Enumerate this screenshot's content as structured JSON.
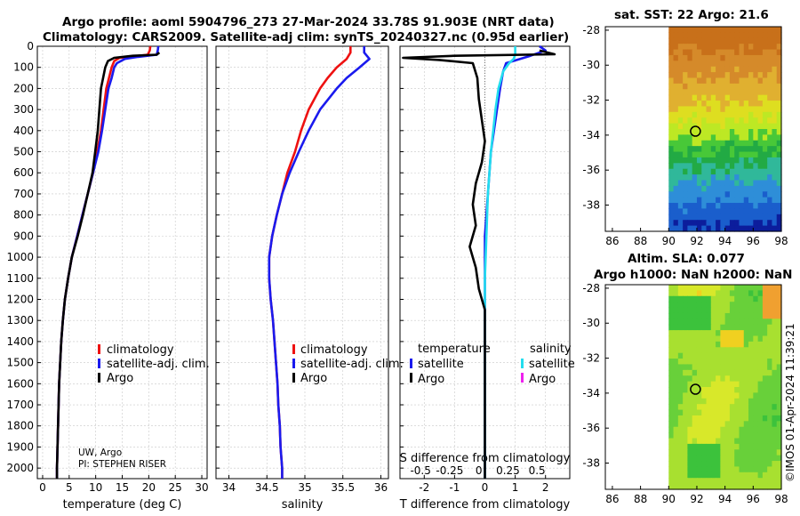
{
  "header": {
    "title_line1": "Argo profile: aoml 5904796_273 27-Mar-2024 33.78S 91.903E (NRT data)",
    "title_line2": "Climatology: CARS2009. Satellite-adj clim: synTS_20240327.nc (0.95d earlier)"
  },
  "credits": {
    "uw": "UW, Argo",
    "pi": "PI: STEPHEN RISER",
    "imos": "©IMOS 01-Apr-2024 11:39:21"
  },
  "colors": {
    "climatology": "#ee1111",
    "satellite": "#1a1aee",
    "argo": "#000000",
    "sat_salinity": "#22ddee",
    "argo_salinity": "#ee22ee"
  },
  "chart_data": [
    {
      "id": "temperature",
      "type": "line",
      "xlabel": "temperature (deg C)",
      "xlim": [
        -1,
        31
      ],
      "xticks": [
        0,
        5,
        10,
        15,
        20,
        25,
        30
      ],
      "ylim": [
        2050,
        0
      ],
      "yticks": [
        0,
        100,
        200,
        300,
        400,
        500,
        600,
        700,
        800,
        900,
        1000,
        1100,
        1200,
        1300,
        1400,
        1500,
        1600,
        1700,
        1800,
        1900,
        2000
      ],
      "legend": [
        "climatology",
        "satellite-adj. clim.",
        "Argo"
      ],
      "series": [
        {
          "name": "climatology",
          "color": "#ee1111",
          "points": [
            [
              20.3,
              0
            ],
            [
              20.2,
              20
            ],
            [
              19.8,
              40
            ],
            [
              17,
              48
            ],
            [
              14.5,
              55
            ],
            [
              13.5,
              70
            ],
            [
              13,
              100
            ],
            [
              12.5,
              150
            ],
            [
              12,
              200
            ],
            [
              11.5,
              300
            ],
            [
              11,
              400
            ],
            [
              10.3,
              500
            ],
            [
              9.5,
              600
            ],
            [
              8.5,
              700
            ],
            [
              7.5,
              800
            ],
            [
              6.5,
              900
            ],
            [
              5.5,
              1000
            ],
            [
              4.8,
              1100
            ],
            [
              4.2,
              1200
            ],
            [
              3.8,
              1300
            ],
            [
              3.5,
              1400
            ],
            [
              3.3,
              1500
            ],
            [
              3.1,
              1600
            ],
            [
              3,
              1700
            ],
            [
              2.9,
              1800
            ],
            [
              2.8,
              1900
            ],
            [
              2.7,
              2000
            ],
            [
              2.7,
              2050
            ]
          ]
        },
        {
          "name": "satellite-adj. clim.",
          "color": "#1a1aee",
          "points": [
            [
              21.8,
              0
            ],
            [
              21.7,
              20
            ],
            [
              21.5,
              40
            ],
            [
              18,
              50
            ],
            [
              15.5,
              60
            ],
            [
              14,
              80
            ],
            [
              13.5,
              100
            ],
            [
              13,
              150
            ],
            [
              12.4,
              200
            ],
            [
              11.8,
              300
            ],
            [
              11.2,
              400
            ],
            [
              10.5,
              500
            ],
            [
              9.5,
              600
            ],
            [
              8.5,
              700
            ],
            [
              7.5,
              800
            ],
            [
              6.5,
              900
            ],
            [
              5.5,
              1000
            ],
            [
              4.8,
              1100
            ],
            [
              4.2,
              1200
            ],
            [
              3.8,
              1300
            ],
            [
              3.5,
              1400
            ],
            [
              3.3,
              1500
            ],
            [
              3.1,
              1600
            ],
            [
              3,
              1700
            ],
            [
              2.9,
              1800
            ],
            [
              2.8,
              1900
            ],
            [
              2.7,
              2000
            ],
            [
              2.7,
              2050
            ]
          ]
        },
        {
          "name": "Argo",
          "color": "#000000",
          "points": [
            [
              22,
              30
            ],
            [
              21.5,
              40
            ],
            [
              17,
              45
            ],
            [
              13.5,
              55
            ],
            [
              12.3,
              70
            ],
            [
              11.8,
              100
            ],
            [
              11.4,
              150
            ],
            [
              11,
              200
            ],
            [
              10.7,
              300
            ],
            [
              10.4,
              400
            ],
            [
              9.9,
              500
            ],
            [
              9.4,
              600
            ],
            [
              8.5,
              700
            ],
            [
              7.6,
              800
            ],
            [
              6.6,
              900
            ],
            [
              5.5,
              1000
            ],
            [
              4.8,
              1100
            ],
            [
              4.2,
              1200
            ],
            [
              3.8,
              1300
            ],
            [
              3.5,
              1400
            ],
            [
              3.3,
              1500
            ],
            [
              3.1,
              1600
            ],
            [
              3,
              1700
            ],
            [
              2.9,
              1800
            ],
            [
              2.8,
              1900
            ],
            [
              2.7,
              2000
            ],
            [
              2.7,
              2050
            ]
          ]
        }
      ]
    },
    {
      "id": "salinity",
      "type": "line",
      "xlabel": "salinity",
      "xlim": [
        33.83,
        36.1
      ],
      "xticks": [
        34,
        34.5,
        35,
        35.5,
        36
      ],
      "ylim": [
        2050,
        0
      ],
      "legend": [
        "climatology",
        "satellite-adj. clim.",
        "Argo"
      ],
      "series": [
        {
          "name": "climatology",
          "color": "#ee1111",
          "points": [
            [
              35.6,
              0
            ],
            [
              35.6,
              30
            ],
            [
              35.55,
              60
            ],
            [
              35.42,
              100
            ],
            [
              35.3,
              150
            ],
            [
              35.2,
              200
            ],
            [
              35.05,
              300
            ],
            [
              34.95,
              400
            ],
            [
              34.87,
              500
            ],
            [
              34.77,
              600
            ],
            [
              34.7,
              700
            ],
            [
              34.63,
              800
            ],
            [
              34.57,
              900
            ],
            [
              34.53,
              1000
            ],
            [
              34.53,
              1100
            ],
            [
              34.55,
              1200
            ],
            [
              34.58,
              1300
            ],
            [
              34.6,
              1400
            ],
            [
              34.62,
              1500
            ],
            [
              34.64,
              1600
            ],
            [
              34.65,
              1700
            ],
            [
              34.67,
              1800
            ],
            [
              34.68,
              1900
            ],
            [
              34.7,
              2000
            ],
            [
              34.7,
              2050
            ]
          ]
        },
        {
          "name": "satellite-adj. clim.",
          "color": "#1a1aee",
          "points": [
            [
              35.78,
              0
            ],
            [
              35.78,
              30
            ],
            [
              35.85,
              60
            ],
            [
              35.72,
              100
            ],
            [
              35.55,
              150
            ],
            [
              35.42,
              200
            ],
            [
              35.2,
              300
            ],
            [
              35.05,
              400
            ],
            [
              34.92,
              500
            ],
            [
              34.8,
              600
            ],
            [
              34.7,
              700
            ],
            [
              34.63,
              800
            ],
            [
              34.57,
              900
            ],
            [
              34.53,
              1000
            ],
            [
              34.53,
              1100
            ],
            [
              34.55,
              1200
            ],
            [
              34.58,
              1300
            ],
            [
              34.6,
              1400
            ],
            [
              34.62,
              1500
            ],
            [
              34.64,
              1600
            ],
            [
              34.65,
              1700
            ],
            [
              34.67,
              1800
            ],
            [
              34.68,
              1900
            ],
            [
              34.7,
              2000
            ],
            [
              34.7,
              2050
            ]
          ]
        }
      ]
    },
    {
      "id": "difference",
      "type": "line",
      "xlabel": "T difference from climatology",
      "s_xlabel": "S difference from climatology",
      "xlim": [
        -2.8,
        2.8
      ],
      "xticks": [
        -2,
        -1,
        0,
        1,
        2
      ],
      "s_ticks": [
        -0.5,
        -0.25,
        0,
        0.25,
        0.5
      ],
      "s_tick_labels": [
        "-0.5",
        "-0.25",
        "0",
        "0.25",
        "0.5"
      ],
      "legend_temperature_title": "temperature",
      "legend_salinity_title": "salinity",
      "legend_temperature": [
        "satellite",
        "Argo"
      ],
      "legend_salinity": [
        "satellite",
        "Argo"
      ],
      "series": [
        {
          "name": "satellite T",
          "color": "#1a1aee",
          "points": [
            [
              1.8,
              0
            ],
            [
              2,
              20
            ],
            [
              1.5,
              45
            ],
            [
              0.7,
              80
            ],
            [
              0.6,
              120
            ],
            [
              0.5,
              200
            ],
            [
              0.4,
              300
            ],
            [
              0.2,
              500
            ],
            [
              0.1,
              700
            ],
            [
              0,
              900
            ],
            [
              0,
              1100
            ],
            [
              0,
              1500
            ],
            [
              0,
              2000
            ],
            [
              0,
              2050
            ]
          ]
        },
        {
          "name": "satellite S",
          "color": "#22ddee",
          "points": [
            [
              1,
              0
            ],
            [
              1,
              40
            ],
            [
              0.95,
              60
            ],
            [
              0.8,
              80
            ],
            [
              0.6,
              120
            ],
            [
              0.45,
              200
            ],
            [
              0.35,
              300
            ],
            [
              0.2,
              500
            ],
            [
              0.1,
              700
            ],
            [
              0.05,
              900
            ],
            [
              0,
              1100
            ],
            [
              0,
              1500
            ],
            [
              0,
              2000
            ],
            [
              0,
              2050
            ]
          ]
        },
        {
          "name": "Argo T",
          "color": "#000000",
          "points": [
            [
              1.8,
              20
            ],
            [
              2.3,
              38
            ],
            [
              -1,
              45
            ],
            [
              -2.7,
              55
            ],
            [
              -1.5,
              65
            ],
            [
              -0.4,
              80
            ],
            [
              -0.25,
              150
            ],
            [
              -0.2,
              250
            ],
            [
              -0.1,
              350
            ],
            [
              0,
              450
            ],
            [
              -0.1,
              550
            ],
            [
              -0.3,
              650
            ],
            [
              -0.4,
              750
            ],
            [
              -0.3,
              850
            ],
            [
              -0.5,
              950
            ],
            [
              -0.3,
              1050
            ],
            [
              -0.2,
              1150
            ],
            [
              0,
              1250
            ],
            [
              0,
              2050
            ]
          ]
        }
      ]
    },
    {
      "id": "sst_map",
      "type": "heatmap",
      "title": "sat. SST: 22 Argo: 21.6",
      "xlim": [
        85.5,
        98
      ],
      "ylim": [
        -39.5,
        -27.8
      ],
      "xticks": [
        86,
        88,
        90,
        92,
        94,
        96,
        98
      ],
      "yticks": [
        -28,
        -30,
        -32,
        -34,
        -36,
        -38
      ],
      "data_extent_lon": [
        90,
        98
      ],
      "argo_position": [
        91.9,
        -33.78
      ]
    },
    {
      "id": "sla_map",
      "type": "heatmap",
      "title_line1": "Altim. SLA: 0.077",
      "title_line2": "Argo h1000: NaN h2000: NaN",
      "xlim": [
        85.5,
        98
      ],
      "ylim": [
        -39.5,
        -27.8
      ],
      "xticks": [
        86,
        88,
        90,
        92,
        94,
        96,
        98
      ],
      "yticks": [
        -28,
        -30,
        -32,
        -34,
        -36,
        -38
      ],
      "data_extent_lon": [
        90,
        98
      ],
      "argo_position": [
        91.9,
        -33.78
      ]
    }
  ]
}
